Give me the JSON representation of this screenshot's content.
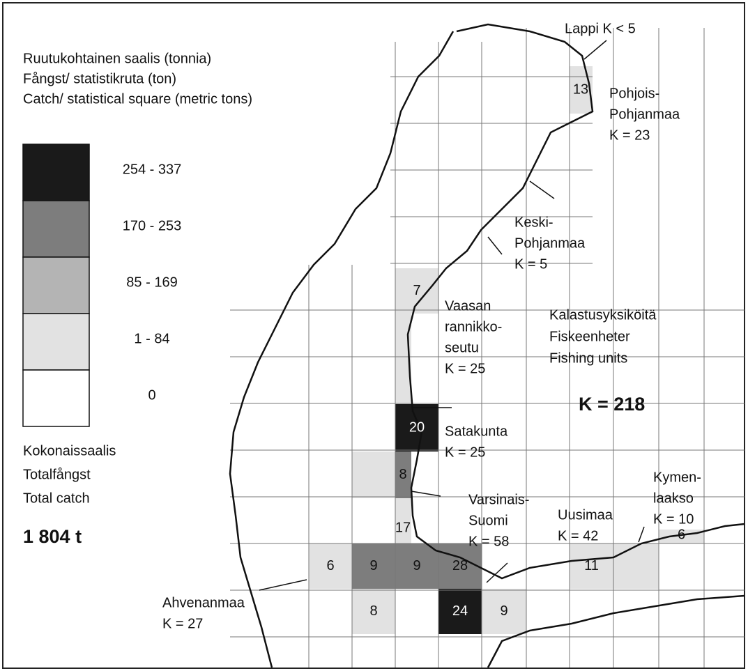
{
  "legend": {
    "title": [
      "Ruutukohtainen saalis (tonnia)",
      "Fångst/ statistikruta (ton)",
      "Catch/ statistical square (metric tons)"
    ],
    "classes": [
      {
        "label": "254 - 337",
        "color": "#1a1a1a"
      },
      {
        "label": "170 - 253",
        "color": "#7d7d7d"
      },
      {
        "label": "85 - 169",
        "color": "#b4b4b4"
      },
      {
        "label": "1 - 84",
        "color": "#e2e2e2"
      },
      {
        "label": "0",
        "color": "#ffffff"
      }
    ]
  },
  "total": {
    "title": [
      "Kokonaissaalis",
      "Totalfångst",
      "Total catch"
    ],
    "value": "1 804 t"
  },
  "units": {
    "title": [
      "Kalastusyksiköitä",
      "Fiskeenheter",
      "Fishing units"
    ],
    "value": "K = 218"
  },
  "regions": [
    {
      "lines": [
        "Lappi  K < 5"
      ]
    },
    {
      "lines": [
        "Pohjois-",
        "Pohjanmaa",
        "K = 23"
      ]
    },
    {
      "lines": [
        "Keski-",
        "Pohjanmaa",
        "K = 5"
      ]
    },
    {
      "lines": [
        "Vaasan",
        "rannikko-",
        "seutu",
        "K = 25"
      ]
    },
    {
      "lines": [
        "Satakunta",
        "K = 25"
      ]
    },
    {
      "lines": [
        "Varsinais-",
        "Suomi",
        "K = 58"
      ]
    },
    {
      "lines": [
        "Uusimaa",
        "K = 42"
      ]
    },
    {
      "lines": [
        "Kymen-",
        "laakso",
        "K = 10"
      ]
    },
    {
      "lines": [
        "Ahvenanmaa",
        "K = 27"
      ]
    }
  ],
  "squares": [
    {
      "label": 13,
      "fill": "#e2e2e2"
    },
    {
      "label": 7,
      "fill": "#e2e2e2"
    },
    {
      "label": null,
      "fill": "#e2e2e2"
    },
    {
      "label": null,
      "fill": "#e2e2e2"
    },
    {
      "label": 20,
      "fill": "#1a1a1a"
    },
    {
      "label": null,
      "fill": "#e2e2e2"
    },
    {
      "label": 8,
      "fill": "#7d7d7d"
    },
    {
      "label": 17,
      "fill": "#e2e2e2"
    },
    {
      "label": 6,
      "fill": "#e2e2e2"
    },
    {
      "label": 9,
      "fill": "#7d7d7d"
    },
    {
      "label": 9,
      "fill": "#7d7d7d"
    },
    {
      "label": 28,
      "fill": "#7d7d7d"
    },
    {
      "label": 8,
      "fill": "#e2e2e2"
    },
    {
      "label": 24,
      "fill": "#1a1a1a"
    },
    {
      "label": 9,
      "fill": "#e2e2e2"
    },
    {
      "label": 11,
      "fill": "#e2e2e2"
    },
    {
      "label": null,
      "fill": "#e2e2e2"
    },
    {
      "label": 6,
      "fill": "#e2e2e2"
    }
  ]
}
